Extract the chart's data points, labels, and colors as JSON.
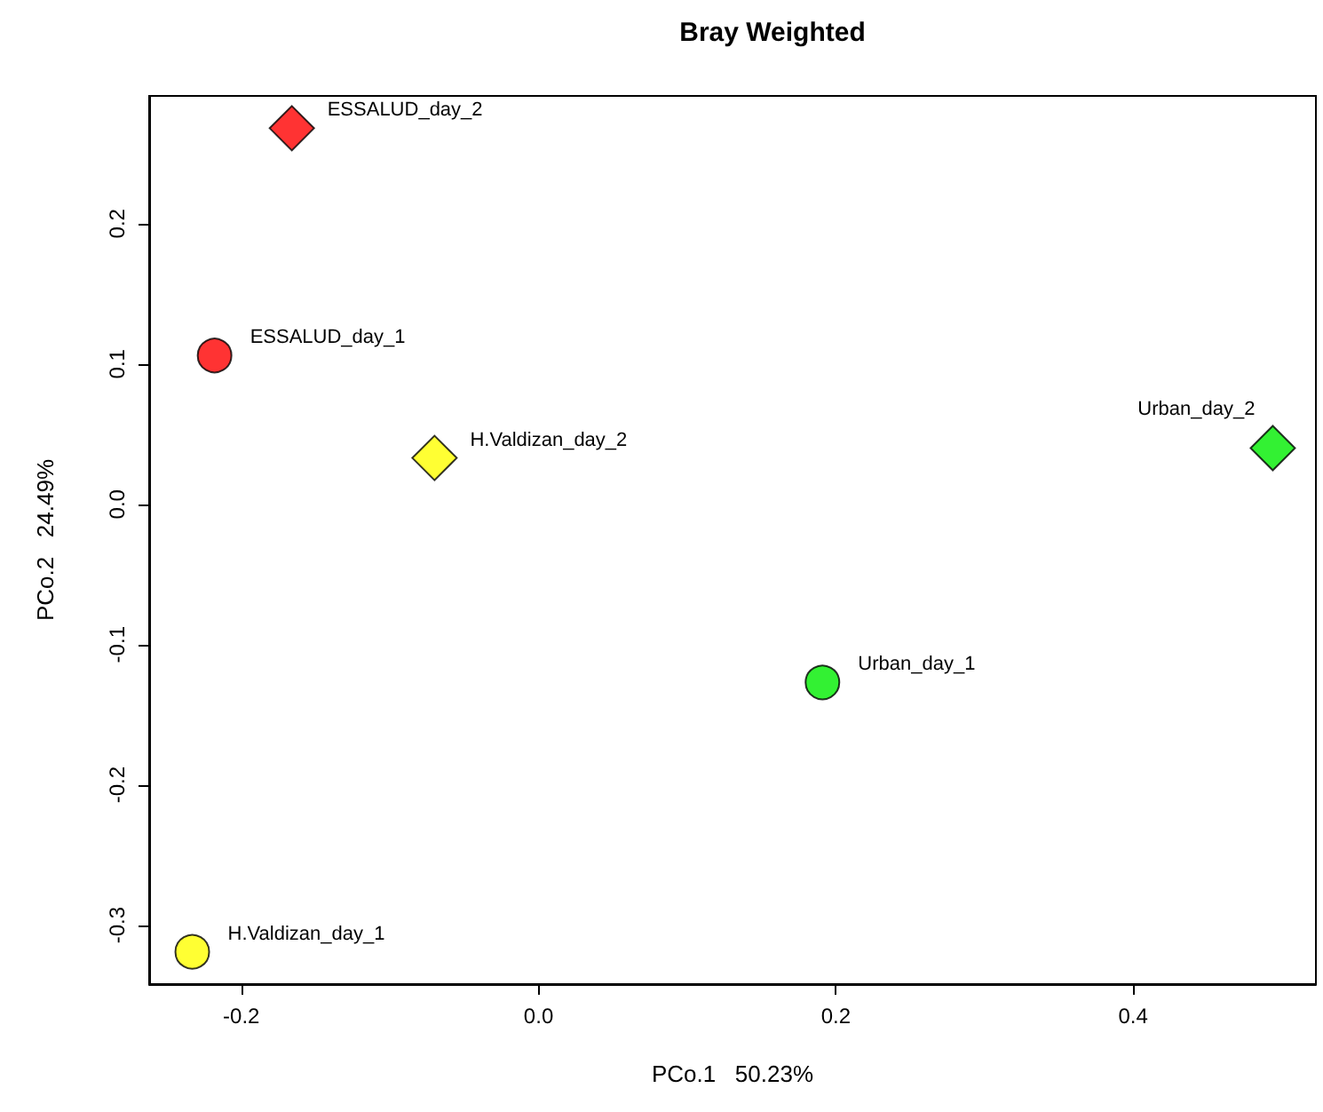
{
  "chart_data": {
    "type": "scatter",
    "title": "Bray Weighted",
    "xlabel": "PCo.1   50.23%",
    "ylabel": "PCo.2   24.49%",
    "series": [
      {
        "marker": "circle",
        "x": [
          -0.218,
          -0.233,
          0.191
        ],
        "values": [
          0.106,
          -0.319,
          -0.127
        ],
        "colors": [
          "#ff0000",
          "#ffff00",
          "#00ee00"
        ]
      },
      {
        "marker": "diamond",
        "x": [
          -0.166,
          -0.07,
          0.494
        ],
        "values": [
          0.268,
          0.033,
          0.04
        ],
        "colors": [
          "#ff0000",
          "#ffff00",
          "#00ee00"
        ]
      }
    ],
    "annotations": [
      {
        "text": "ESSALUD_day_1",
        "x": -0.218,
        "y": 0.106
      },
      {
        "text": "H.Valdizan_day_1",
        "x": -0.233,
        "y": -0.319
      },
      {
        "text": "Urban_day_1",
        "x": 0.191,
        "y": -0.127
      },
      {
        "text": "ESSALUD_day_2",
        "x": -0.166,
        "y": 0.268
      },
      {
        "text": "H.Valdizan_day_2",
        "x": -0.07,
        "y": 0.033
      },
      {
        "text": "Urban_day_2",
        "x": 0.494,
        "y": 0.04
      }
    ],
    "xlim": [
      -0.262,
      0.523
    ],
    "xticks": [
      -0.2,
      {
        "value": 0,
        "label": "0.0"
      },
      0.2,
      0.4
    ],
    "ylim": [
      -0.342,
      0.291
    ],
    "yticks": [
      -0.3,
      -0.2,
      -0.1,
      {
        "value": 0,
        "label": "0.0"
      },
      0.1,
      0.2
    ],
    "grid": false
  }
}
